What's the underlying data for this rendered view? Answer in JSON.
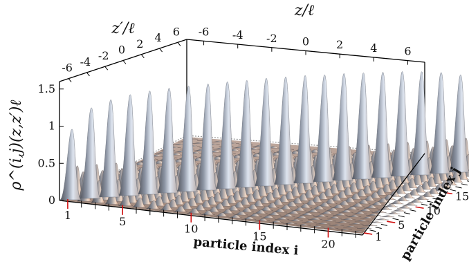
{
  "chart_data": {
    "type": "surface",
    "z_label": "ρ^(i,j)(z,z′)ℓ",
    "z_ticks": [
      "0",
      "0.5",
      "1",
      "1.5"
    ],
    "z_range": [
      0,
      1.6
    ],
    "top_axis_label": "z/ℓ",
    "top_axis_ticks": [
      "-6",
      "-4",
      "-2",
      "0",
      "2",
      "4",
      "6"
    ],
    "left_top_axis_label": "z′/ℓ",
    "left_top_axis_ticks": [
      "-6",
      "-4",
      "-2",
      "0",
      "2",
      "4",
      "6"
    ],
    "x_label": "particle index i",
    "x_ticks": [
      "1",
      "5",
      "10",
      "15",
      "20"
    ],
    "y_label": "particle index j",
    "y_ticks": [
      "1",
      "5",
      "10",
      "15",
      "20"
    ],
    "n_particles": 22,
    "diagonal_peaks": [
      {
        "i": 1,
        "height": 0.95
      },
      {
        "i": 2,
        "height": 1.22
      },
      {
        "i": 3,
        "height": 1.31
      },
      {
        "i": 4,
        "height": 1.36
      },
      {
        "i": 5,
        "height": 1.39
      },
      {
        "i": 6,
        "height": 1.41
      },
      {
        "i": 7,
        "height": 1.42
      },
      {
        "i": 8,
        "height": 1.43
      },
      {
        "i": 9,
        "height": 1.44
      },
      {
        "i": 10,
        "height": 1.44
      },
      {
        "i": 11,
        "height": 1.45
      },
      {
        "i": 12,
        "height": 1.45
      },
      {
        "i": 13,
        "height": 1.45
      },
      {
        "i": 14,
        "height": 1.44
      },
      {
        "i": 15,
        "height": 1.44
      },
      {
        "i": 16,
        "height": 1.43
      },
      {
        "i": 17,
        "height": 1.42
      },
      {
        "i": 18,
        "height": 1.41
      },
      {
        "i": 19,
        "height": 1.39
      },
      {
        "i": 20,
        "height": 1.36
      },
      {
        "i": 21,
        "height": 1.31
      },
      {
        "i": 22,
        "height": 0.95
      }
    ],
    "offdiagonal_bump_heights": [
      0.42,
      0.3,
      0.22,
      0.17,
      0.13
    ],
    "colors": {
      "surface_light": "#d9e0ec",
      "surface_mid": "#8f98a6",
      "surface_dark": "#3e3f44",
      "surface_warm": "#d8a990",
      "tick_red": "#d01010",
      "axis": "#000000"
    }
  }
}
